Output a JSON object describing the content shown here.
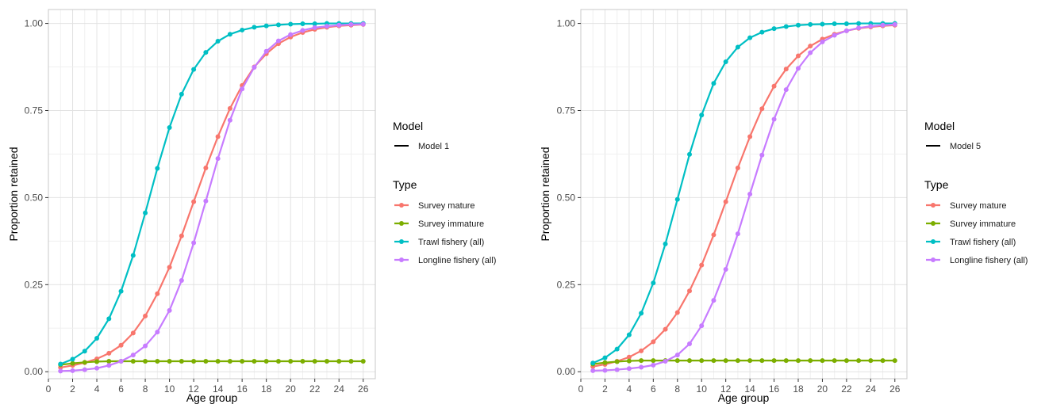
{
  "chart_data": [
    {
      "type": "line",
      "xlabel": "Age group",
      "ylabel": "Proportion retained",
      "xlim": [
        0,
        27
      ],
      "ylim": [
        -0.02,
        1.04
      ],
      "x_ticks": [
        0,
        2,
        4,
        6,
        8,
        10,
        12,
        14,
        16,
        18,
        20,
        22,
        24,
        26
      ],
      "y_ticks": [
        0.0,
        0.25,
        0.5,
        0.75,
        1.0
      ],
      "y_tick_labels": [
        "0.00",
        "0.25",
        "0.50",
        "0.75",
        "1.00"
      ],
      "grid": true,
      "legend_position": "right",
      "legend": {
        "model_title": "Model",
        "model_label": "Model 1",
        "type_title": "Type",
        "entries": [
          "Survey mature",
          "Survey immature",
          "Trawl fishery (all)",
          "Longline fishery (all)"
        ]
      },
      "x": [
        1,
        2,
        3,
        4,
        5,
        6,
        7,
        8,
        9,
        10,
        11,
        12,
        13,
        14,
        15,
        16,
        17,
        18,
        19,
        20,
        21,
        22,
        23,
        24,
        25,
        26
      ],
      "series": [
        {
          "name": "Survey mature",
          "color": "#F8766D",
          "values": [
            0.012,
            0.018,
            0.026,
            0.037,
            0.053,
            0.076,
            0.111,
            0.16,
            0.224,
            0.3,
            0.39,
            0.488,
            0.585,
            0.675,
            0.756,
            0.822,
            0.875,
            0.913,
            0.942,
            0.961,
            0.974,
            0.983,
            0.989,
            0.993,
            0.995,
            0.997
          ]
        },
        {
          "name": "Survey immature",
          "color": "#7CAE00",
          "values": [
            0.02,
            0.024,
            0.027,
            0.029,
            0.03,
            0.03,
            0.03,
            0.03,
            0.03,
            0.03,
            0.03,
            0.03,
            0.03,
            0.03,
            0.03,
            0.03,
            0.03,
            0.03,
            0.03,
            0.03,
            0.03,
            0.03,
            0.03,
            0.03,
            0.03,
            0.03
          ]
        },
        {
          "name": "Trawl fishery (all)",
          "color": "#00BFC4",
          "values": [
            0.022,
            0.036,
            0.059,
            0.096,
            0.152,
            0.231,
            0.334,
            0.456,
            0.584,
            0.701,
            0.797,
            0.868,
            0.917,
            0.949,
            0.969,
            0.981,
            0.989,
            0.993,
            0.996,
            0.998,
            0.999,
            0.999,
            1.0,
            1.0,
            1.0,
            1.0
          ]
        },
        {
          "name": "Longline fishery (all)",
          "color": "#C77CFF",
          "values": [
            0.002,
            0.003,
            0.006,
            0.01,
            0.018,
            0.03,
            0.048,
            0.074,
            0.114,
            0.176,
            0.262,
            0.37,
            0.49,
            0.612,
            0.722,
            0.812,
            0.874,
            0.92,
            0.95,
            0.968,
            0.98,
            0.988,
            0.992,
            0.995,
            0.997,
            0.998
          ]
        }
      ]
    },
    {
      "type": "line",
      "xlabel": "Age group",
      "ylabel": "Proportion retained",
      "xlim": [
        0,
        27
      ],
      "ylim": [
        -0.02,
        1.04
      ],
      "x_ticks": [
        0,
        2,
        4,
        6,
        8,
        10,
        12,
        14,
        16,
        18,
        20,
        22,
        24,
        26
      ],
      "y_ticks": [
        0.0,
        0.25,
        0.5,
        0.75,
        1.0
      ],
      "y_tick_labels": [
        "0.00",
        "0.25",
        "0.50",
        "0.75",
        "1.00"
      ],
      "grid": true,
      "legend_position": "right",
      "legend": {
        "model_title": "Model",
        "model_label": "Model 5",
        "type_title": "Type",
        "entries": [
          "Survey mature",
          "Survey immature",
          "Trawl fishery (all)",
          "Longline fishery (all)"
        ]
      },
      "x": [
        1,
        2,
        3,
        4,
        5,
        6,
        7,
        8,
        9,
        10,
        11,
        12,
        13,
        14,
        15,
        16,
        17,
        18,
        19,
        20,
        21,
        22,
        23,
        24,
        25,
        26
      ],
      "series": [
        {
          "name": "Survey mature",
          "color": "#F8766D",
          "values": [
            0.015,
            0.021,
            0.03,
            0.042,
            0.06,
            0.086,
            0.122,
            0.17,
            0.232,
            0.306,
            0.393,
            0.488,
            0.585,
            0.675,
            0.755,
            0.82,
            0.869,
            0.907,
            0.935,
            0.955,
            0.969,
            0.979,
            0.986,
            0.99,
            0.993,
            0.995
          ]
        },
        {
          "name": "Survey immature",
          "color": "#7CAE00",
          "values": [
            0.022,
            0.026,
            0.029,
            0.031,
            0.032,
            0.032,
            0.032,
            0.032,
            0.032,
            0.032,
            0.032,
            0.032,
            0.032,
            0.032,
            0.032,
            0.032,
            0.032,
            0.032,
            0.032,
            0.032,
            0.032,
            0.032,
            0.032,
            0.032,
            0.032,
            0.032
          ]
        },
        {
          "name": "Trawl fishery (all)",
          "color": "#00BFC4",
          "values": [
            0.025,
            0.04,
            0.065,
            0.106,
            0.168,
            0.255,
            0.367,
            0.495,
            0.624,
            0.737,
            0.828,
            0.89,
            0.932,
            0.959,
            0.975,
            0.985,
            0.991,
            0.995,
            0.997,
            0.998,
            0.999,
            0.999,
            1.0,
            1.0,
            1.0,
            1.0
          ]
        },
        {
          "name": "Longline fishery (all)",
          "color": "#C77CFF",
          "values": [
            0.003,
            0.004,
            0.006,
            0.009,
            0.013,
            0.019,
            0.03,
            0.048,
            0.08,
            0.132,
            0.205,
            0.294,
            0.396,
            0.51,
            0.622,
            0.725,
            0.81,
            0.871,
            0.916,
            0.947,
            0.966,
            0.979,
            0.987,
            0.992,
            0.995,
            0.997
          ]
        }
      ]
    }
  ]
}
